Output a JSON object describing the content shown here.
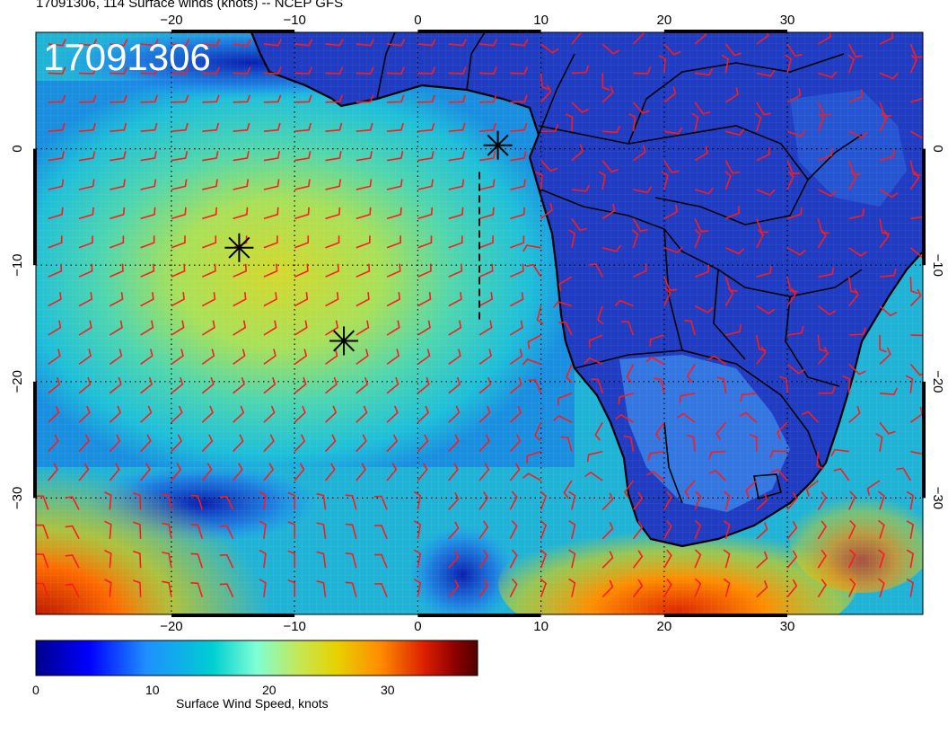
{
  "title": "17091306, 114 Surface winds (knots) -- NCEP GFS",
  "inset_label": "17091306",
  "map": {
    "lon_range": [
      -31,
      41
    ],
    "lat_range": [
      -40,
      10
    ],
    "lon_ticks": [
      -20,
      -10,
      0,
      10,
      20,
      30
    ],
    "lat_ticks": [
      0,
      -10,
      -20,
      -30
    ],
    "lon_tick_labels": [
      "−20",
      "−10",
      "0",
      "10",
      "20",
      "30"
    ],
    "lat_tick_labels": [
      "0",
      "−10",
      "−20",
      "−30"
    ],
    "marker_points": [
      {
        "lon": 6.5,
        "lat": 0.3
      },
      {
        "lon": -14.5,
        "lat": -8.5
      },
      {
        "lon": -6,
        "lat": -16.5
      }
    ],
    "vertical_dashed_track": {
      "lon": 5,
      "lat_top": -2,
      "lat_bottom": -15
    },
    "colors": {
      "wind_barbs": "#ff1a1a",
      "ocean_core": "#d6d62c",
      "land": "#1f3cc2",
      "coast": "#000000"
    }
  },
  "colorbar": {
    "label": "Surface Wind Speed, knots",
    "ticks": [
      "0",
      "10",
      "20",
      "30"
    ],
    "tick_values": [
      0,
      10,
      20,
      30
    ],
    "range": [
      0,
      38
    ],
    "colors": [
      "#00008b",
      "#0000ff",
      "#1e90ff",
      "#00ced1",
      "#7fffd4",
      "#c8e650",
      "#e6d200",
      "#ff8c00",
      "#dc1e00",
      "#8b0000",
      "#500000"
    ]
  }
}
